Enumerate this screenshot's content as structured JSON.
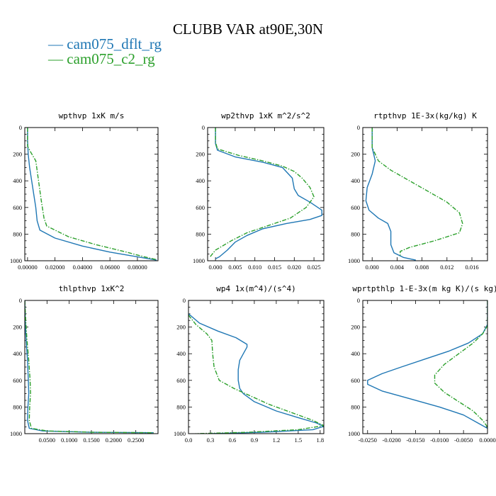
{
  "figure": {
    "title": "CLUBB VAR at90E,30N",
    "legend": [
      {
        "label": "cam075_dflt_rg",
        "color": "#1f77b4",
        "dash": "solid"
      },
      {
        "label": "cam075_c2_rg",
        "color": "#2ca02c",
        "dash": "dashdot"
      }
    ]
  },
  "chart_data": [
    {
      "type": "line",
      "title": "wpthvp  1xK m/s",
      "xlabel": "",
      "ylabel": "",
      "xlim": [
        -0.002,
        0.095
      ],
      "ylim": [
        1000,
        0
      ],
      "xticks": [
        0.0,
        0.02,
        0.04,
        0.06,
        0.08
      ],
      "xticklabels": [
        "0.00000",
        "0.02000",
        "0.04000",
        "0.06000",
        "0.08000"
      ],
      "yticks": [
        0,
        200,
        400,
        600,
        800,
        1000
      ],
      "series": [
        {
          "name": "cam075_dflt_rg",
          "color": "#1f77b4",
          "dash": "solid",
          "points": [
            [
              0.0,
              0
            ],
            [
              0.0,
              100
            ],
            [
              0.0005,
              200
            ],
            [
              0.0015,
              300
            ],
            [
              0.003,
              400
            ],
            [
              0.0045,
              500
            ],
            [
              0.006,
              600
            ],
            [
              0.007,
              700
            ],
            [
              0.009,
              770
            ],
            [
              0.02,
              830
            ],
            [
              0.04,
              890
            ],
            [
              0.06,
              935
            ],
            [
              0.08,
              970
            ],
            [
              0.094,
              995
            ]
          ]
        },
        {
          "name": "cam075_c2_rg",
          "color": "#2ca02c",
          "dash": "dashdot",
          "points": [
            [
              0.0,
              0
            ],
            [
              0.0,
              140
            ],
            [
              0.002,
              180
            ],
            [
              0.006,
              250
            ],
            [
              0.008,
              400
            ],
            [
              0.01,
              550
            ],
            [
              0.012,
              680
            ],
            [
              0.014,
              740
            ],
            [
              0.03,
              820
            ],
            [
              0.05,
              880
            ],
            [
              0.07,
              930
            ],
            [
              0.085,
              970
            ],
            [
              0.094,
              992
            ]
          ]
        }
      ]
    },
    {
      "type": "line",
      "title": "wp2thvp  1xK m^2/s^2",
      "xlabel": "",
      "ylabel": "",
      "xlim": [
        -0.002,
        0.0275
      ],
      "ylim": [
        1000,
        0
      ],
      "xticks": [
        0.0,
        0.005,
        0.01,
        0.015,
        0.02,
        0.025
      ],
      "xticklabels": [
        "0.000",
        "0.005",
        "0.010",
        "0.015",
        "0.020",
        "0.025"
      ],
      "yticks": [
        0,
        200,
        400,
        600,
        800,
        1000
      ],
      "series": [
        {
          "name": "cam075_dflt_rg",
          "color": "#1f77b4",
          "dash": "solid",
          "points": [
            [
              0.0,
              0
            ],
            [
              0.0,
              120
            ],
            [
              0.0005,
              170
            ],
            [
              0.005,
              220
            ],
            [
              0.012,
              260
            ],
            [
              0.017,
              300
            ],
            [
              0.0195,
              380
            ],
            [
              0.02,
              460
            ],
            [
              0.021,
              510
            ],
            [
              0.024,
              560
            ],
            [
              0.027,
              620
            ],
            [
              0.027,
              660
            ],
            [
              0.024,
              690
            ],
            [
              0.018,
              720
            ],
            [
              0.012,
              760
            ],
            [
              0.008,
              810
            ],
            [
              0.005,
              860
            ],
            [
              0.003,
              920
            ],
            [
              0.001,
              970
            ],
            [
              0.0,
              985
            ]
          ]
        },
        {
          "name": "cam075_c2_rg",
          "color": "#2ca02c",
          "dash": "dashdot",
          "points": [
            [
              0.0,
              0
            ],
            [
              0.0,
              110
            ],
            [
              0.0005,
              160
            ],
            [
              0.006,
              210
            ],
            [
              0.012,
              250
            ],
            [
              0.017,
              290
            ],
            [
              0.02,
              330
            ],
            [
              0.022,
              380
            ],
            [
              0.024,
              450
            ],
            [
              0.025,
              520
            ],
            [
              0.023,
              600
            ],
            [
              0.019,
              680
            ],
            [
              0.013,
              740
            ],
            [
              0.008,
              790
            ],
            [
              0.004,
              850
            ],
            [
              0.0,
              920
            ],
            [
              -0.0015,
              975
            ]
          ]
        }
      ]
    },
    {
      "type": "line",
      "title": "rtpthvp  1E-3x(kg/kg) K",
      "xlabel": "",
      "ylabel": "",
      "xlim": [
        -0.0015,
        0.0185
      ],
      "ylim": [
        1000,
        0
      ],
      "xticks": [
        0.0,
        0.004,
        0.008,
        0.012,
        0.016
      ],
      "xticklabels": [
        "0.000",
        "0.004",
        "0.008",
        "0.012",
        "0.016"
      ],
      "yticks": [
        0,
        200,
        400,
        600,
        800,
        1000
      ],
      "series": [
        {
          "name": "cam075_dflt_rg",
          "color": "#1f77b4",
          "dash": "solid",
          "points": [
            [
              0.0,
              0
            ],
            [
              0.0,
              150
            ],
            [
              0.0005,
              250
            ],
            [
              0.0,
              350
            ],
            [
              -0.0008,
              450
            ],
            [
              -0.001,
              550
            ],
            [
              -0.0005,
              620
            ],
            [
              0.001,
              680
            ],
            [
              0.0025,
              720
            ],
            [
              0.003,
              780
            ],
            [
              0.003,
              880
            ],
            [
              0.0035,
              940
            ],
            [
              0.005,
              975
            ],
            [
              0.007,
              995
            ]
          ]
        },
        {
          "name": "cam075_c2_rg",
          "color": "#2ca02c",
          "dash": "dashdot",
          "points": [
            [
              0.0,
              0
            ],
            [
              0.0,
              150
            ],
            [
              0.001,
              250
            ],
            [
              0.003,
              320
            ],
            [
              0.006,
              400
            ],
            [
              0.009,
              480
            ],
            [
              0.012,
              560
            ],
            [
              0.014,
              640
            ],
            [
              0.0145,
              720
            ],
            [
              0.014,
              790
            ],
            [
              0.01,
              850
            ],
            [
              0.006,
              900
            ],
            [
              0.0045,
              930
            ],
            [
              0.0045,
              960
            ]
          ]
        }
      ]
    },
    {
      "type": "line",
      "title": "thlpthvp  1xK^2",
      "xlabel": "",
      "ylabel": "",
      "xlim": [
        0.0,
        0.3
      ],
      "ylim": [
        1000,
        0
      ],
      "xticks": [
        0.05,
        0.1,
        0.15,
        0.2,
        0.25
      ],
      "xticklabels": [
        "0.0500",
        "0.1000",
        "0.1500",
        "0.2000",
        "0.2500"
      ],
      "yticks": [
        0,
        200,
        400,
        600,
        800,
        1000
      ],
      "series": [
        {
          "name": "cam075_dflt_rg",
          "color": "#1f77b4",
          "dash": "solid",
          "points": [
            [
              0.0,
              0
            ],
            [
              0.001,
              150
            ],
            [
              0.003,
              300
            ],
            [
              0.006,
              450
            ],
            [
              0.008,
              600
            ],
            [
              0.009,
              700
            ],
            [
              0.007,
              800
            ],
            [
              0.006,
              900
            ],
            [
              0.01,
              960
            ],
            [
              0.04,
              980
            ],
            [
              0.15,
              990
            ],
            [
              0.29,
              993
            ]
          ]
        },
        {
          "name": "cam075_c2_rg",
          "color": "#2ca02c",
          "dash": "dashdot",
          "points": [
            [
              0.0,
              0
            ],
            [
              0.002,
              150
            ],
            [
              0.005,
              300
            ],
            [
              0.009,
              450
            ],
            [
              0.012,
              600
            ],
            [
              0.013,
              700
            ],
            [
              0.011,
              800
            ],
            [
              0.01,
              900
            ],
            [
              0.015,
              960
            ],
            [
              0.05,
              980
            ],
            [
              0.16,
              990
            ],
            [
              0.29,
              993
            ]
          ]
        }
      ]
    },
    {
      "type": "line",
      "title": "wp4  1x(m^4)/(s^4)",
      "xlabel": "",
      "ylabel": "",
      "xlim": [
        0.0,
        1.85
      ],
      "ylim": [
        1000,
        0
      ],
      "xticks": [
        0.0,
        0.3,
        0.6,
        0.9,
        1.2,
        1.5,
        1.8
      ],
      "xticklabels": [
        "0.0",
        "0.3",
        "0.6",
        "0.9",
        "1.2",
        "1.5",
        "1.8"
      ],
      "yticks": [
        0,
        200,
        400,
        600,
        800,
        1000
      ],
      "series": [
        {
          "name": "cam075_dflt_rg",
          "color": "#1f77b4",
          "dash": "solid",
          "points": [
            [
              0.0,
              100
            ],
            [
              0.15,
              170
            ],
            [
              0.4,
              230
            ],
            [
              0.65,
              280
            ],
            [
              0.8,
              330
            ],
            [
              0.8,
              350
            ],
            [
              0.75,
              400
            ],
            [
              0.7,
              450
            ],
            [
              0.68,
              520
            ],
            [
              0.68,
              600
            ],
            [
              0.7,
              660
            ],
            [
              0.75,
              700
            ],
            [
              0.9,
              760
            ],
            [
              1.2,
              830
            ],
            [
              1.5,
              880
            ],
            [
              1.75,
              920
            ],
            [
              1.85,
              945
            ],
            [
              1.7,
              970
            ],
            [
              1.0,
              990
            ],
            [
              0.3,
              1000
            ]
          ]
        },
        {
          "name": "cam075_c2_rg",
          "color": "#2ca02c",
          "dash": "dashdot",
          "points": [
            [
              0.0,
              110
            ],
            [
              0.1,
              180
            ],
            [
              0.25,
              250
            ],
            [
              0.32,
              300
            ],
            [
              0.33,
              400
            ],
            [
              0.35,
              500
            ],
            [
              0.42,
              600
            ],
            [
              0.62,
              660
            ],
            [
              0.78,
              700
            ],
            [
              1.1,
              780
            ],
            [
              1.4,
              840
            ],
            [
              1.7,
              900
            ],
            [
              1.85,
              940
            ],
            [
              1.5,
              970
            ],
            [
              0.8,
              990
            ],
            [
              0.1,
              1000
            ]
          ]
        }
      ]
    },
    {
      "type": "line",
      "title": "wprtpthlp  1-E-3x(m kg K)/(s kg)",
      "xlabel": "",
      "ylabel": "",
      "xlim": [
        -0.026,
        0.0
      ],
      "ylim": [
        1000,
        0
      ],
      "xticks": [
        -0.025,
        -0.02,
        -0.015,
        -0.01,
        -0.005,
        0.0
      ],
      "xticklabels": [
        "-0.0250",
        "-0.0200",
        "-0.0150",
        "-0.0100",
        "-0.0050",
        "0.0000"
      ],
      "yticks": [
        0,
        200,
        400,
        600,
        800,
        1000
      ],
      "series": [
        {
          "name": "cam075_dflt_rg",
          "color": "#1f77b4",
          "dash": "solid",
          "points": [
            [
              0.0,
              0
            ],
            [
              0.0,
              180
            ],
            [
              -0.001,
              250
            ],
            [
              -0.004,
              320
            ],
            [
              -0.008,
              380
            ],
            [
              -0.013,
              440
            ],
            [
              -0.018,
              500
            ],
            [
              -0.022,
              550
            ],
            [
              -0.025,
              600
            ],
            [
              -0.025,
              630
            ],
            [
              -0.022,
              680
            ],
            [
              -0.016,
              740
            ],
            [
              -0.01,
              800
            ],
            [
              -0.005,
              860
            ],
            [
              -0.002,
              920
            ],
            [
              0.0,
              960
            ]
          ]
        },
        {
          "name": "cam075_c2_rg",
          "color": "#2ca02c",
          "dash": "dashdot",
          "points": [
            [
              0.0,
              0
            ],
            [
              0.0,
              190
            ],
            [
              -0.001,
              250
            ],
            [
              -0.003,
              320
            ],
            [
              -0.006,
              400
            ],
            [
              -0.009,
              480
            ],
            [
              -0.011,
              560
            ],
            [
              -0.011,
              620
            ],
            [
              -0.009,
              690
            ],
            [
              -0.006,
              760
            ],
            [
              -0.003,
              830
            ],
            [
              -0.001,
              900
            ],
            [
              0.0,
              950
            ]
          ]
        }
      ]
    }
  ]
}
